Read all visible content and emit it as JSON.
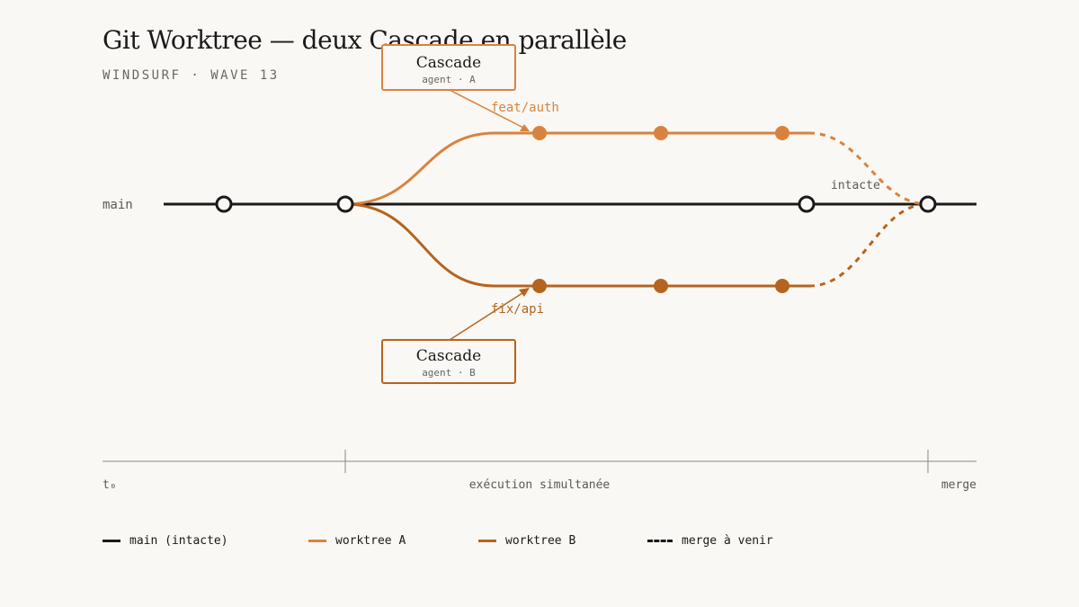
{
  "header": {
    "title": "Git Worktree — deux Cascade en parallèle",
    "subtitle": "WINDSURF · WAVE 13"
  },
  "colors": {
    "main": "#1a1a1a",
    "worktree_a": "#d9823f",
    "worktree_b": "#b5641f",
    "background": "#faf8f4",
    "muted": "#6b6660"
  },
  "diagram": {
    "main_label": "main",
    "branch_a_label": "feat/auth",
    "branch_b_label": "fix/api",
    "intact_label": "intacte",
    "agent_a": {
      "title": "Cascade",
      "subtitle": "agent · A"
    },
    "agent_b": {
      "title": "Cascade",
      "subtitle": "agent · B"
    }
  },
  "timeline": {
    "start_label": "t₀",
    "middle_label": "exécution simultanée",
    "end_label": "merge"
  },
  "legend": {
    "main": "main (intacte)",
    "worktree_a": "worktree A",
    "worktree_b": "worktree B",
    "merge": "merge à venir"
  }
}
